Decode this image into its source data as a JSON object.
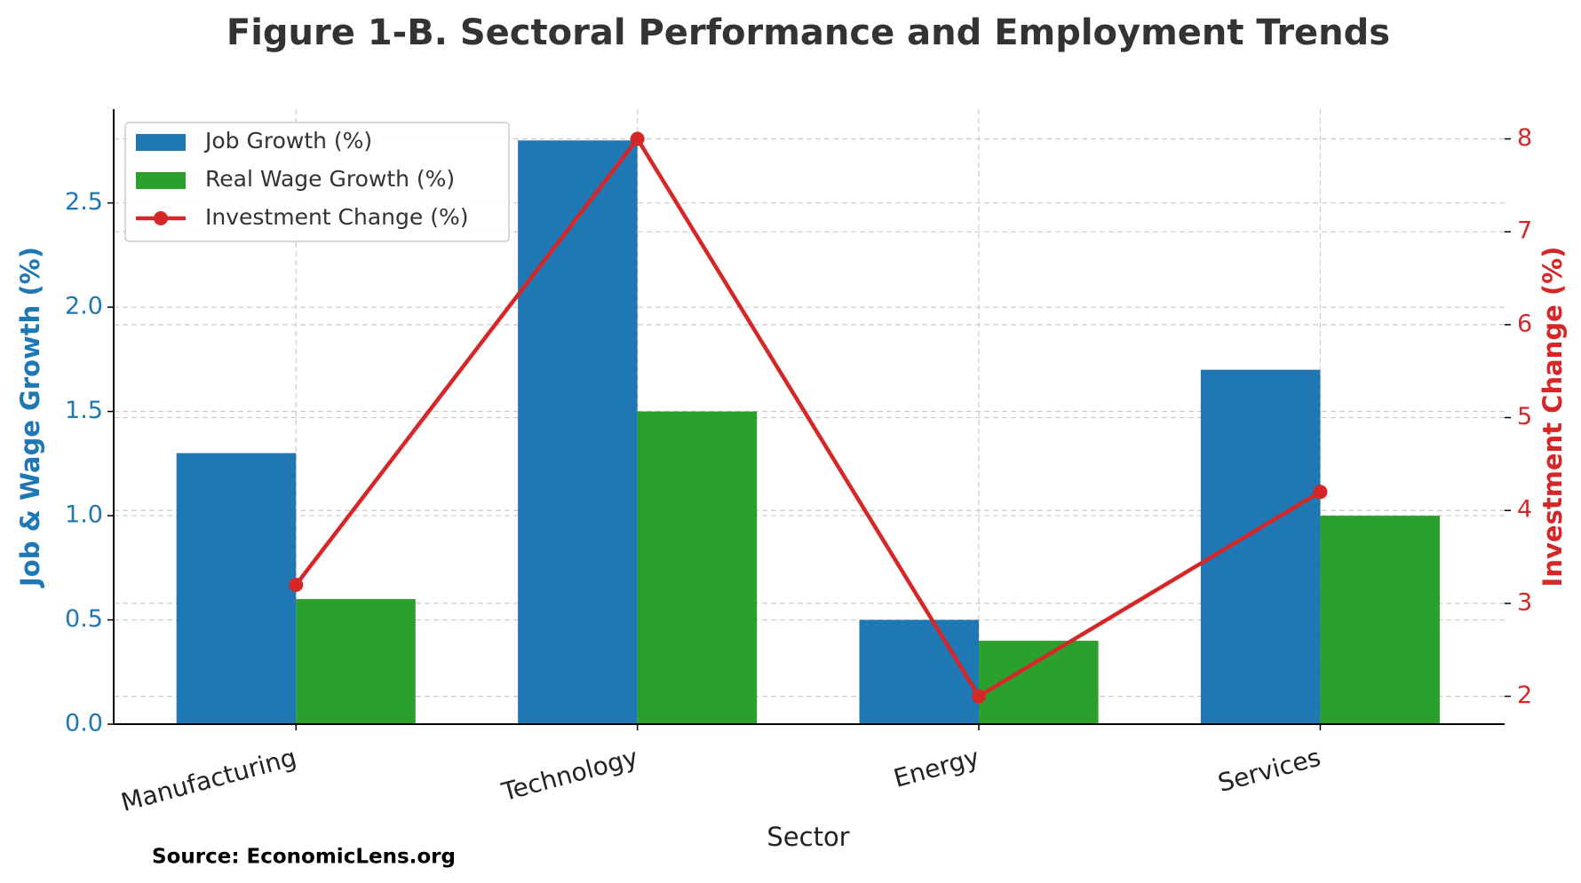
{
  "chart_data": {
    "type": "bar",
    "title": "Figure 1-B. Sectoral Performance and Employment Trends",
    "xlabel": "Sector",
    "ylabel": "Job & Wage Growth (%)",
    "y2label": "Investment Change (%)",
    "source": "Source: EconomicLens.org",
    "categories": [
      "Manufacturing",
      "Technology",
      "Energy",
      "Services"
    ],
    "series": [
      {
        "name": "Job Growth (%)",
        "type": "bar",
        "color": "#1f77b4",
        "values": [
          1.3,
          2.8,
          0.5,
          1.7
        ]
      },
      {
        "name": "Real Wage Growth (%)",
        "type": "bar",
        "color": "#2ca02c",
        "values": [
          0.6,
          1.5,
          0.4,
          1.0
        ]
      },
      {
        "name": "Investment Change (%)",
        "type": "line",
        "axis": "y2",
        "color": "#d62728",
        "values": [
          3.2,
          8,
          2,
          4.2
        ]
      }
    ],
    "ylim": [
      0,
      2.95
    ],
    "yticks": [
      {
        "value": 0,
        "label": "0.0"
      },
      0.5,
      {
        "value": 1,
        "label": "1.0"
      },
      1.5,
      {
        "value": 2,
        "label": "2.0"
      },
      2.5
    ],
    "y2lim": [
      1.7,
      8.32
    ],
    "y2ticks": [
      2,
      3,
      4,
      5,
      6,
      7,
      8
    ],
    "ylabel_color": "#1f77b4",
    "y2label_color": "#d62728",
    "grid": true,
    "legend": "upper left"
  }
}
